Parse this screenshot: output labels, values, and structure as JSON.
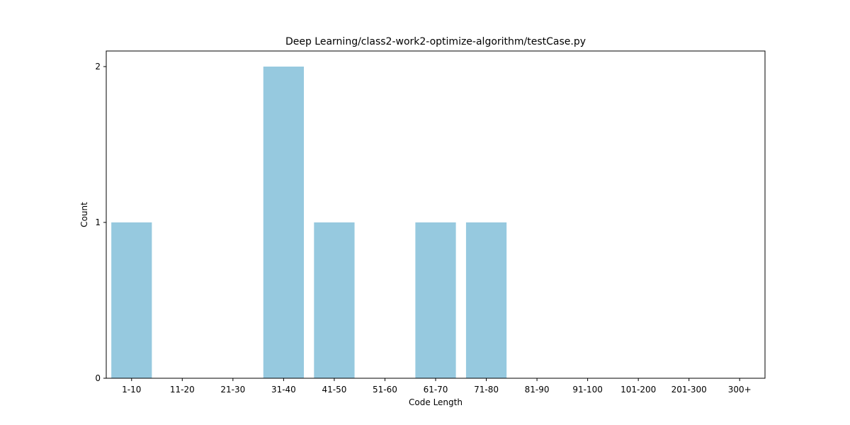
{
  "chart_data": {
    "type": "bar",
    "title": "Deep Learning/class2-work2-optimize-algorithm/testCase.py",
    "xlabel": "Code Length",
    "ylabel": "Count",
    "categories": [
      "1-10",
      "11-20",
      "21-30",
      "31-40",
      "41-50",
      "51-60",
      "61-70",
      "71-80",
      "81-90",
      "91-100",
      "101-200",
      "201-300",
      "300+"
    ],
    "values": [
      1,
      0,
      0,
      2,
      1,
      0,
      1,
      1,
      0,
      0,
      0,
      0,
      0
    ],
    "ylim": [
      0,
      2.1
    ],
    "yticks": [
      0,
      1,
      2
    ],
    "bar_color": "#96c9df",
    "grid": false,
    "legend": "none"
  }
}
